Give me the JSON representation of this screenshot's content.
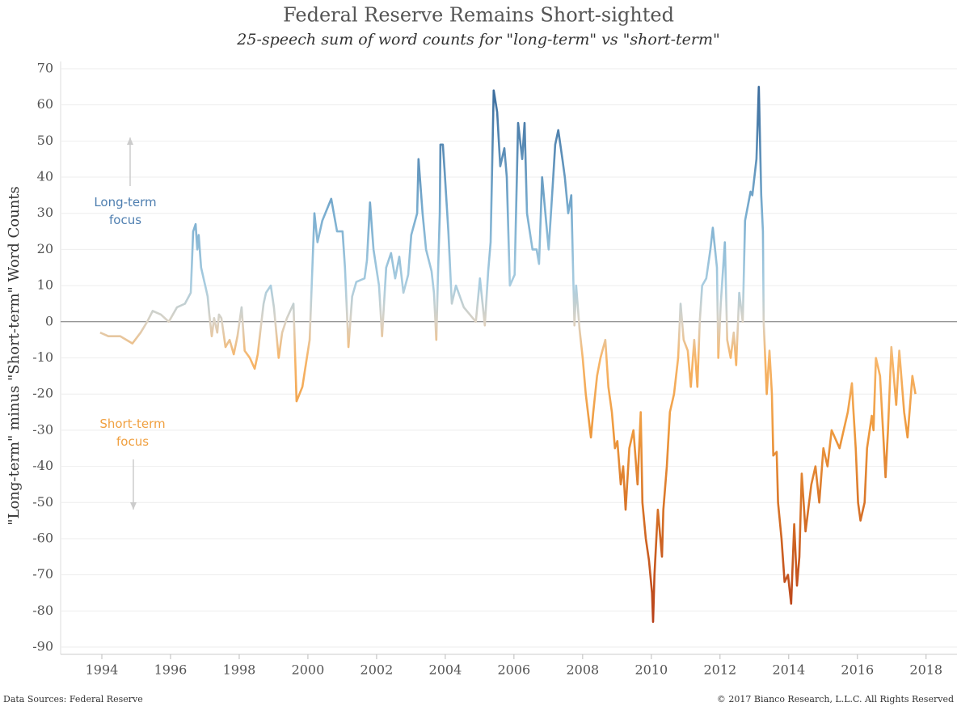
{
  "chart_data": {
    "type": "line",
    "title": "Federal Reserve Remains Short-sighted",
    "subtitle": "25-speech sum of word counts for \"long-term\" vs \"short-term\"",
    "y_label": "\"Long-term\" minus \"Short-term\" Word Counts",
    "source": "Data Sources: Federal Reserve",
    "copyright": "© 2017 Bianco Research, L.L.C. All Rights Reserved",
    "annotations": [
      {
        "lines": [
          "Long-term",
          "focus"
        ],
        "color": "#4f7fb0",
        "arrow": "up"
      },
      {
        "lines": [
          "Short-term",
          "focus"
        ],
        "color": "#f0a040",
        "arrow": "down"
      }
    ],
    "xlim": [
      1992.8,
      2018.9
    ],
    "xticks": [
      1994,
      1996,
      1998,
      2000,
      2002,
      2004,
      2006,
      2008,
      2010,
      2012,
      2014,
      2016,
      2018
    ],
    "ylim": [
      -92,
      72
    ],
    "yticks": [
      70,
      60,
      50,
      40,
      30,
      20,
      10,
      0,
      -10,
      -20,
      -30,
      -40,
      -50,
      -60,
      -70,
      -80,
      -90
    ],
    "grid": true,
    "reference_line": 0,
    "color_scale": [
      {
        "value": 65,
        "color": "#3a6b9c"
      },
      {
        "value": 30,
        "color": "#7aaed0"
      },
      {
        "value": 10,
        "color": "#a9cde0"
      },
      {
        "value": 0,
        "color": "#dbd2c4"
      },
      {
        "value": -10,
        "color": "#f7b66a"
      },
      {
        "value": -30,
        "color": "#ee9a3e"
      },
      {
        "value": -55,
        "color": "#d46d25"
      },
      {
        "value": -83,
        "color": "#b8401a"
      }
    ],
    "x": [
      1993.95,
      1994.19,
      1994.54,
      1994.89,
      1995.13,
      1995.32,
      1995.48,
      1995.72,
      1995.95,
      1996.19,
      1996.42,
      1996.59,
      1996.66,
      1996.73,
      1996.78,
      1996.82,
      1996.89,
      1997.01,
      1997.08,
      1997.13,
      1997.2,
      1997.27,
      1997.36,
      1997.41,
      1997.48,
      1997.6,
      1997.72,
      1997.84,
      1997.95,
      1998.07,
      1998.16,
      1998.31,
      1998.45,
      1998.54,
      1998.61,
      1998.71,
      1998.78,
      1998.92,
      1999.01,
      1999.15,
      1999.25,
      1999.39,
      1999.58,
      1999.67,
      1999.84,
      2000.05,
      2000.19,
      2000.28,
      2000.42,
      2000.68,
      2000.85,
      2001.01,
      2001.08,
      2001.18,
      2001.29,
      2001.41,
      2001.65,
      2001.72,
      2001.81,
      2001.91,
      2002.07,
      2002.16,
      2002.28,
      2002.42,
      2002.54,
      2002.66,
      2002.78,
      2002.92,
      2003.01,
      2003.18,
      2003.22,
      2003.34,
      2003.44,
      2003.6,
      2003.67,
      2003.74,
      2003.79,
      2003.84,
      2003.86,
      2003.93,
      2003.98,
      2004.09,
      2004.19,
      2004.31,
      2004.54,
      2004.89,
      2005.01,
      2005.15,
      2005.25,
      2005.32,
      2005.41,
      2005.51,
      2005.6,
      2005.72,
      2005.79,
      2005.88,
      2006.02,
      2006.12,
      2006.24,
      2006.31,
      2006.38,
      2006.54,
      2006.66,
      2006.73,
      2006.82,
      2007.01,
      2007.13,
      2007.2,
      2007.29,
      2007.41,
      2007.48,
      2007.58,
      2007.67,
      2007.76,
      2007.81,
      2007.91,
      2008.0,
      2008.09,
      2008.24,
      2008.31,
      2008.42,
      2008.52,
      2008.66,
      2008.75,
      2008.85,
      2008.94,
      2009.01,
      2009.11,
      2009.18,
      2009.25,
      2009.36,
      2009.48,
      2009.6,
      2009.69,
      2009.74,
      2009.84,
      2009.93,
      2010.02,
      2010.05,
      2010.09,
      2010.19,
      2010.31,
      2010.35,
      2010.45,
      2010.54,
      2010.66,
      2010.78,
      2010.85,
      2010.94,
      2011.06,
      2011.15,
      2011.25,
      2011.34,
      2011.41,
      2011.48,
      2011.6,
      2011.72,
      2011.79,
      2011.91,
      2011.95,
      2012.02,
      2012.14,
      2012.21,
      2012.31,
      2012.4,
      2012.47,
      2012.56,
      2012.66,
      2012.73,
      2012.89,
      2012.94,
      2013.06,
      2013.13,
      2013.2,
      2013.25,
      2013.27,
      2013.36,
      2013.44,
      2013.51,
      2013.55,
      2013.65,
      2013.69,
      2013.79,
      2013.88,
      2013.98,
      2014.07,
      2014.16,
      2014.24,
      2014.31,
      2014.38,
      2014.49,
      2014.66,
      2014.78,
      2014.89,
      2015.01,
      2015.13,
      2015.25,
      2015.48,
      2015.72,
      2015.84,
      2015.88,
      2015.95,
      2016.02,
      2016.09,
      2016.21,
      2016.28,
      2016.42,
      2016.47,
      2016.54,
      2016.66,
      2016.82,
      2016.89,
      2016.99,
      2017.13,
      2017.22,
      2017.36,
      2017.46,
      2017.6,
      2017.69
    ],
    "values": [
      -3,
      -4,
      -4,
      -6,
      -3,
      0,
      3,
      2,
      0,
      4,
      5,
      8,
      25,
      27,
      20,
      24,
      15,
      10,
      7,
      2,
      -4,
      1,
      -3,
      2,
      1,
      -7,
      -5,
      -9,
      -4,
      4,
      -8,
      -10,
      -13,
      -9,
      -3,
      5,
      8,
      10,
      4,
      -10,
      -3,
      1,
      5,
      -22,
      -18,
      -5,
      30,
      22,
      28,
      34,
      25,
      25,
      15,
      -7,
      7,
      11,
      12,
      17,
      33,
      20,
      10,
      -4,
      15,
      19,
      12,
      18,
      8,
      13,
      24,
      30,
      45,
      30,
      20,
      14,
      8,
      -5,
      14,
      30,
      49,
      49,
      42,
      25,
      5,
      10,
      4,
      0,
      12,
      -1,
      14,
      22,
      64,
      58,
      43,
      48,
      40,
      10,
      13,
      55,
      45,
      55,
      30,
      20,
      20,
      16,
      40,
      20,
      38,
      49,
      53,
      45,
      40,
      30,
      35,
      -1,
      10,
      -2,
      -10,
      -20,
      -32,
      -25,
      -15,
      -10,
      -5,
      -18,
      -25,
      -35,
      -33,
      -45,
      -40,
      -52,
      -35,
      -30,
      -45,
      -25,
      -50,
      -60,
      -66,
      -75,
      -83,
      -70,
      -52,
      -65,
      -52,
      -40,
      -25,
      -20,
      -10,
      5,
      -5,
      -8,
      -18,
      -5,
      -18,
      0,
      10,
      12,
      20,
      26,
      15,
      -10,
      5,
      22,
      -5,
      -10,
      -3,
      -12,
      8,
      0,
      28,
      36,
      35,
      45,
      65,
      35,
      25,
      0,
      -20,
      -8,
      -20,
      -37,
      -36,
      -50,
      -60,
      -72,
      -70,
      -78,
      -56,
      -73,
      -65,
      -42,
      -58,
      -45,
      -40,
      -50,
      -35,
      -40,
      -30,
      -35,
      -25,
      -17,
      -24,
      -35,
      -50,
      -55,
      -50,
      -35,
      -26,
      -30,
      -10,
      -15,
      -43,
      -30,
      -7,
      -23,
      -8,
      -25,
      -32,
      -15,
      -20
    ]
  }
}
